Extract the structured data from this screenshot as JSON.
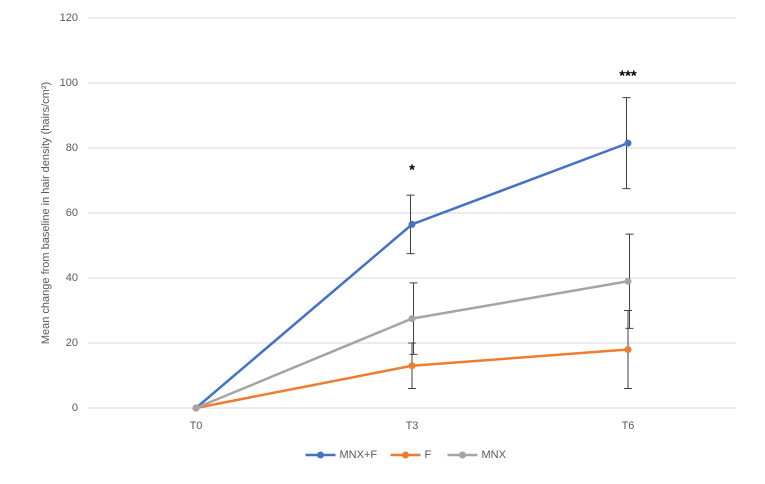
{
  "chart_data": {
    "type": "line",
    "y_label": "Mean change from baseline in hair density (hairs/cm²)",
    "categories": [
      "T0",
      "T3",
      "T6"
    ],
    "series": [
      {
        "name": "MNX+F",
        "color": "#4472c4",
        "values": [
          0,
          56.5,
          81.5
        ],
        "errors": [
          null,
          9,
          14
        ]
      },
      {
        "name": "F",
        "color": "#ed7d31",
        "values": [
          0,
          13,
          18
        ],
        "errors": [
          null,
          7,
          12
        ]
      },
      {
        "name": "MNX",
        "color": "#a5a5a5",
        "values": [
          0,
          27.5,
          39
        ],
        "errors": [
          null,
          11,
          14.5
        ]
      }
    ],
    "annotations": [
      {
        "text": "*",
        "category": "T3",
        "y": 73
      },
      {
        "text": "***",
        "category": "T6",
        "y": 102
      }
    ],
    "ylim": [
      0,
      120
    ],
    "yticks": [
      0,
      20,
      40,
      60,
      80,
      100,
      120
    ],
    "grid": true,
    "legend": "bottom",
    "error_color": "#404040"
  }
}
